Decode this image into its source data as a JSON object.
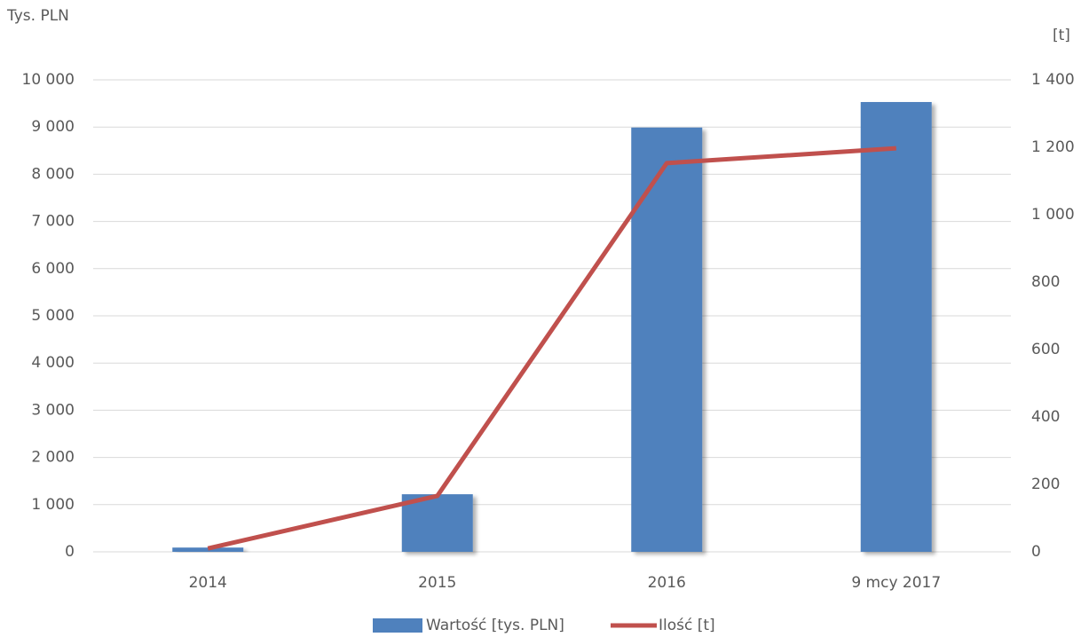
{
  "chart_data": {
    "type": "bar_line",
    "y_label": "Tys. PLN",
    "y2_label": "[t]",
    "categories": [
      "2014",
      "2015",
      "2016",
      "9 mcy 2017"
    ],
    "series": [
      {
        "name": "Wartość [tys. PLN]",
        "type": "bar",
        "color": "#4f81bd",
        "values": [
          90,
          1220,
          8990,
          9530
        ]
      },
      {
        "name": "Ilość [t]",
        "type": "line",
        "color": "#c0504d",
        "axis": "y2",
        "values": [
          10,
          166,
          1153,
          1197
        ]
      }
    ],
    "ylim": [
      0,
      10000
    ],
    "yticks": [
      0,
      {
        "value": 1000,
        "label": "1 000"
      },
      {
        "value": 2000,
        "label": "2 000"
      },
      {
        "value": 3000,
        "label": "3 000"
      },
      {
        "value": 4000,
        "label": "4 000"
      },
      {
        "value": 5000,
        "label": "5 000"
      },
      {
        "value": 6000,
        "label": "6 000"
      },
      {
        "value": 7000,
        "label": "7 000"
      },
      {
        "value": 8000,
        "label": "8 000"
      },
      {
        "value": 9000,
        "label": "9 000"
      },
      {
        "value": 10000,
        "label": "10 000"
      }
    ],
    "y2lim": [
      0,
      1400
    ],
    "y2ticks": [
      0,
      200,
      400,
      600,
      800,
      {
        "value": 1000,
        "label": "1 000"
      },
      {
        "value": 1200,
        "label": "1 200"
      },
      {
        "value": 1400,
        "label": "1 400"
      }
    ],
    "grid": true,
    "legend": "bottom"
  }
}
